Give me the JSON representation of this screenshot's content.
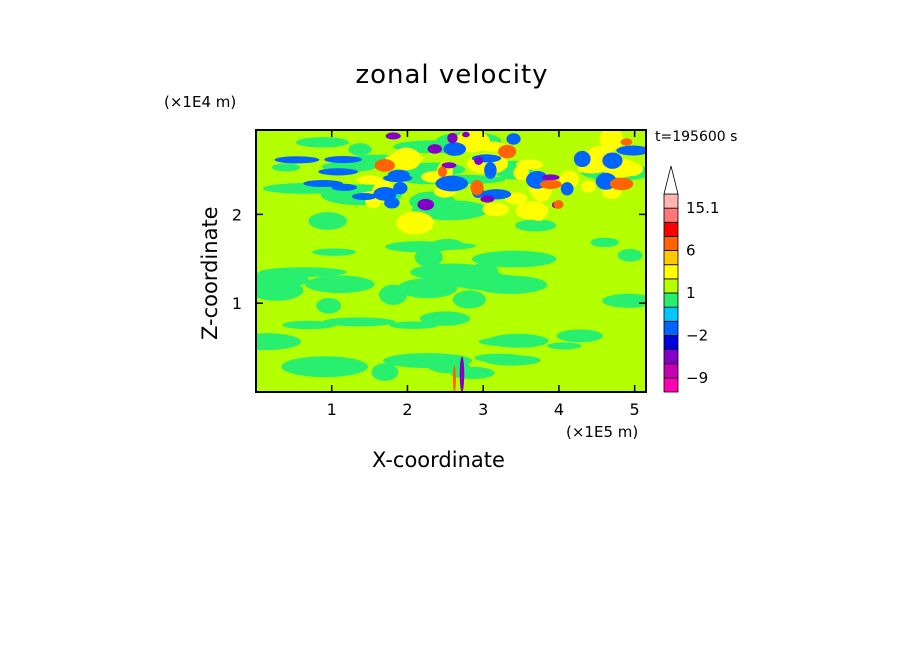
{
  "chart_data": {
    "type": "heatmap",
    "title": "zonal velocity",
    "xlabel": "X-coordinate",
    "ylabel": "Z-coordinate",
    "x_scale_label": "(×1E5 m)",
    "y_scale_label": "(×1E4 m)",
    "time_label": "t=195600 s",
    "xlim": [
      0,
      5.15
    ],
    "ylim": [
      0,
      2.95
    ],
    "x_ticks": [
      1,
      2,
      3,
      4,
      5
    ],
    "y_ticks": [
      1,
      2
    ],
    "colorbar": {
      "levels": [
        -12,
        -9,
        -6,
        -4,
        -2,
        -1,
        0,
        1,
        2,
        3,
        6,
        9,
        12,
        15.1
      ],
      "colors": [
        "#ff00b4",
        "#c800b4",
        "#8200c8",
        "#0000dc",
        "#0064ff",
        "#00c8ff",
        "#28f06e",
        "#b4ff00",
        "#ffff00",
        "#ffc800",
        "#ff6400",
        "#ff0000",
        "#ff7878",
        "#ffb4b4"
      ],
      "labels": [
        {
          "value": 15.1,
          "text": "15.1"
        },
        {
          "value": 6,
          "text": "6"
        },
        {
          "value": 1,
          "text": "1"
        },
        {
          "value": -2,
          "text": "−2"
        },
        {
          "value": -9,
          "text": "−9"
        }
      ],
      "extend_max": true
    },
    "field_description_values": {
      "background_level": 1.5
    }
  }
}
